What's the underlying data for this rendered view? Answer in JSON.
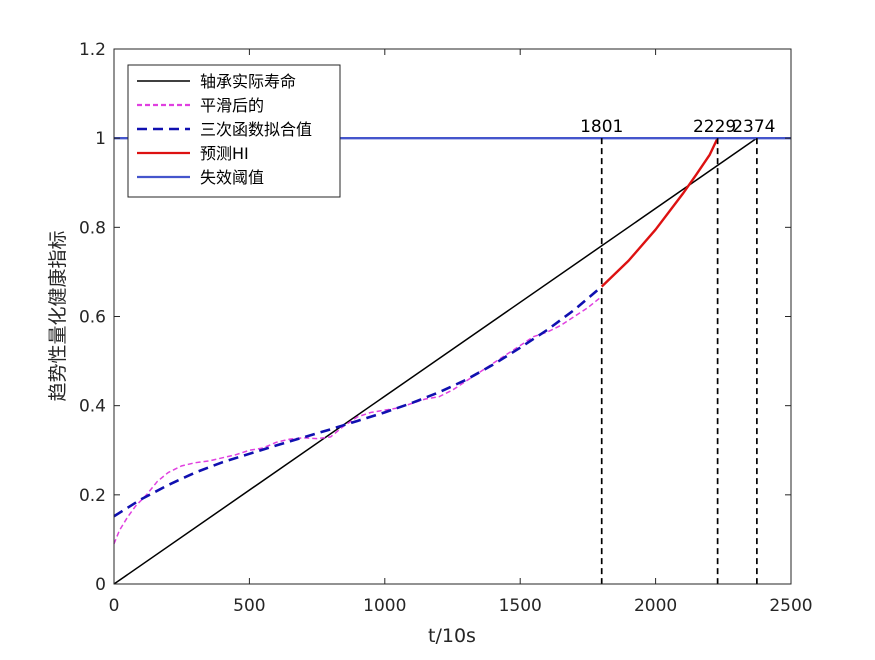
{
  "chart_data": {
    "type": "line",
    "title": "",
    "xlabel": "t/10s",
    "ylabel": "趋势性量化健康指标",
    "xlim": [
      0,
      2500
    ],
    "ylim": [
      0,
      1.2
    ],
    "xticks": [
      0,
      500,
      1000,
      1500,
      2000,
      2500
    ],
    "yticks": [
      0,
      0.2,
      0.4,
      0.6,
      0.8,
      1,
      1.2
    ],
    "xtick_labels": [
      "0",
      "500",
      "1000",
      "1500",
      "2000",
      "2500"
    ],
    "ytick_labels": [
      "0",
      "0.2",
      "0.4",
      "0.6",
      "0.8",
      "1",
      "1.2"
    ],
    "grid": false,
    "legend_position": "top-left",
    "series": [
      {
        "key": "actual",
        "name": "轴承实际寿命",
        "color": "#000000",
        "style": "solid",
        "x": [
          0,
          2374
        ],
        "y": [
          0,
          1.0
        ]
      },
      {
        "key": "smoothed",
        "name": "平滑后的",
        "color": "#e040e0",
        "style": "dashed-fine",
        "x": [
          0,
          20,
          50,
          80,
          120,
          160,
          200,
          250,
          300,
          350,
          400,
          450,
          500,
          550,
          600,
          650,
          700,
          750,
          800,
          850,
          900,
          950,
          1000,
          1050,
          1100,
          1150,
          1200,
          1250,
          1300,
          1350,
          1400,
          1450,
          1500,
          1550,
          1600,
          1650,
          1700,
          1750,
          1801
        ],
        "y": [
          0.09,
          0.12,
          0.15,
          0.175,
          0.2,
          0.23,
          0.25,
          0.265,
          0.272,
          0.276,
          0.283,
          0.29,
          0.3,
          0.305,
          0.318,
          0.325,
          0.328,
          0.326,
          0.33,
          0.355,
          0.375,
          0.385,
          0.39,
          0.395,
          0.405,
          0.415,
          0.42,
          0.435,
          0.455,
          0.475,
          0.495,
          0.515,
          0.535,
          0.555,
          0.565,
          0.58,
          0.6,
          0.62,
          0.645
        ]
      },
      {
        "key": "fit",
        "name": "三次函数拟合值",
        "color": "#1010b0",
        "style": "dashed-bold",
        "x": [
          0,
          100,
          200,
          300,
          400,
          500,
          600,
          700,
          800,
          900,
          1000,
          1100,
          1200,
          1300,
          1400,
          1500,
          1600,
          1700,
          1801
        ],
        "y": [
          0.152,
          0.19,
          0.222,
          0.25,
          0.273,
          0.292,
          0.311,
          0.329,
          0.347,
          0.366,
          0.385,
          0.406,
          0.43,
          0.458,
          0.492,
          0.53,
          0.57,
          0.615,
          0.667
        ]
      },
      {
        "key": "predicted",
        "name": "预测HI",
        "color": "#dd1111",
        "style": "solid",
        "x": [
          1801,
          1900,
          2000,
          2100,
          2150,
          2200,
          2229
        ],
        "y": [
          0.667,
          0.725,
          0.795,
          0.875,
          0.918,
          0.963,
          1.0
        ]
      },
      {
        "key": "threshold",
        "name": "失效阈值",
        "color": "#4455cc",
        "style": "solid",
        "x": [
          0,
          2500
        ],
        "y": [
          1.0,
          1.0
        ]
      }
    ],
    "annotations": [
      {
        "label": "1801",
        "x": 1801
      },
      {
        "label": "2229",
        "x": 2229
      },
      {
        "label": "2374",
        "x": 2374
      }
    ]
  }
}
